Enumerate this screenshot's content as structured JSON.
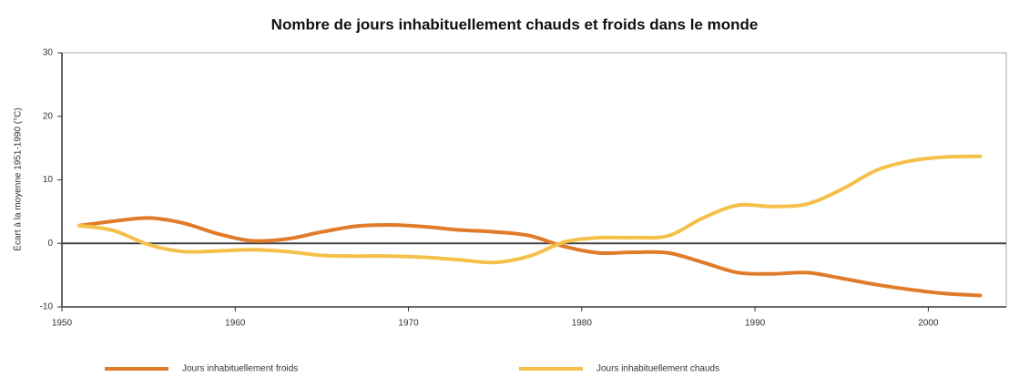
{
  "chart_data": {
    "type": "line",
    "title": "Nombre de jours inhabituellement chauds et froids dans le monde",
    "y_label": "Écart à la moyenne 1951-1990 (°C)",
    "x": [
      1951,
      1953,
      1955,
      1957,
      1959,
      1961,
      1963,
      1965,
      1967,
      1969,
      1971,
      1973,
      1975,
      1977,
      1979,
      1981,
      1983,
      1985,
      1987,
      1989,
      1991,
      1993,
      1995,
      1997,
      1999,
      2001,
      2003
    ],
    "series": [
      {
        "name": "Jours inhabituellement froids",
        "color": "#e07b2a",
        "values": [
          2.8,
          3.5,
          4,
          3.2,
          1.5,
          0.4,
          0.7,
          1.8,
          2.7,
          2.9,
          2.6,
          2.1,
          1.8,
          1.2,
          -0.5,
          -1.5,
          -1.4,
          -1.5,
          -3,
          -4.6,
          -4.8,
          -4.6,
          -5.5,
          -6.5,
          -7.3,
          -7.9,
          -8.2
        ]
      },
      {
        "name": "Jours inhabituellement chauds",
        "color": "#f5c04a",
        "values": [
          2.8,
          2,
          -0.2,
          -1.3,
          -1.2,
          -1,
          -1.3,
          -1.9,
          -2,
          -2,
          -2.2,
          -2.6,
          -3,
          -2,
          0.2,
          0.9,
          0.9,
          1.2,
          4,
          6,
          5.8,
          6.2,
          8.5,
          11.5,
          13,
          13.6,
          13.7
        ]
      }
    ],
    "xlim": [
      1950,
      2004.5
    ],
    "xticks": [
      1950,
      1960,
      1970,
      1980,
      1990,
      2000
    ],
    "ylim": [
      -10,
      30
    ],
    "yticks": [
      -10,
      0,
      10,
      20,
      30
    ]
  }
}
